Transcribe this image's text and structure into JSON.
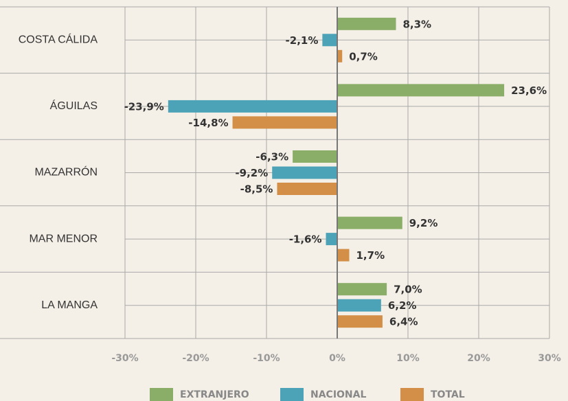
{
  "chart_data": {
    "type": "bar",
    "orientation": "horizontal",
    "categories": [
      "COSTA CÁLIDA",
      "ÁGUILAS",
      "MAZARRÓN",
      "MAR MENOR",
      "LA MANGA"
    ],
    "series": [
      {
        "name": "EXTRANJERO",
        "color": "#8aad68",
        "values": [
          8.3,
          23.6,
          -6.3,
          9.2,
          7.0
        ],
        "value_labels": [
          "8,3%",
          "23,6%",
          "-6,3%",
          "9,2%",
          "7,0%"
        ]
      },
      {
        "name": "NACIONAL",
        "color": "#4ca3b7",
        "values": [
          -2.1,
          -23.9,
          -9.2,
          -1.6,
          6.2
        ],
        "value_labels": [
          "-2,1%",
          "-23,9%",
          "-9,2%",
          "-1,6%",
          "6,2%"
        ]
      },
      {
        "name": "TOTAL",
        "color": "#d38f48",
        "values": [
          0.7,
          -14.8,
          -8.5,
          1.7,
          6.4
        ],
        "value_labels": [
          "0,7%",
          "-14,8%",
          "-8,5%",
          "1,7%",
          "6,4%"
        ]
      }
    ],
    "xlim": [
      -30,
      30
    ],
    "xticks": [
      {
        "value": -30,
        "label": "-30%"
      },
      {
        "value": -20,
        "label": "-20%"
      },
      {
        "value": -10,
        "label": "-10%"
      },
      {
        "value": 0,
        "label": "0%"
      },
      {
        "value": 10,
        "label": "10%"
      },
      {
        "value": 20,
        "label": "20%"
      },
      {
        "value": 30,
        "label": "30%"
      }
    ],
    "grid": true,
    "legend": "bottom"
  }
}
